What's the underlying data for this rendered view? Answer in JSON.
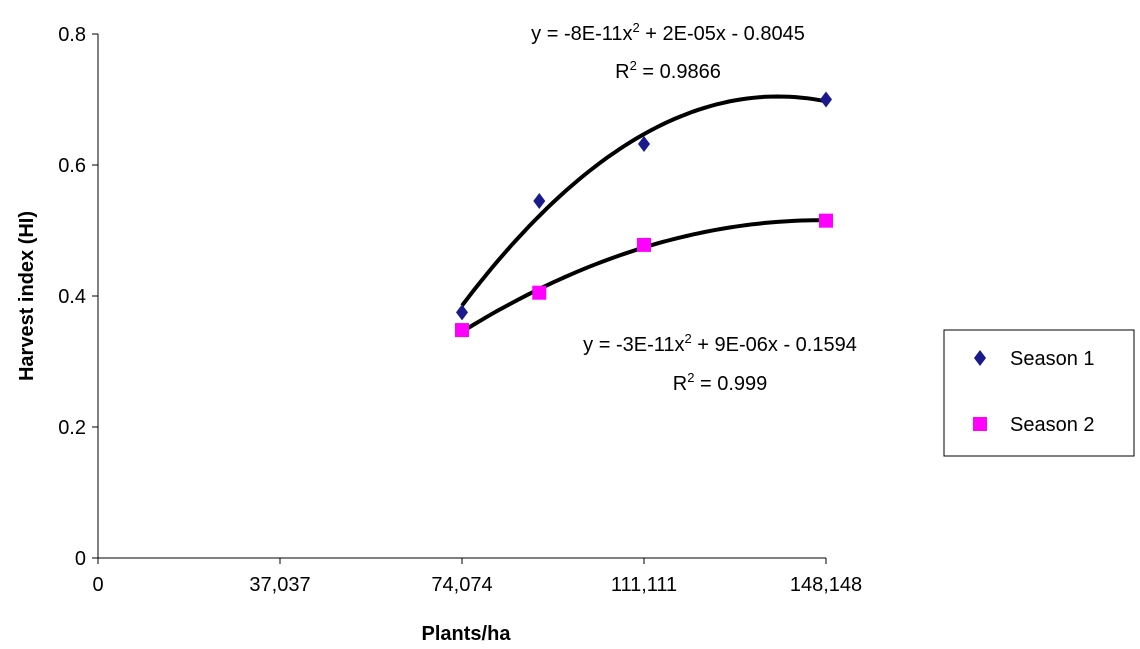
{
  "chart_data": {
    "type": "scatter",
    "xlabel": "Plants/ha",
    "ylabel": "Harvest index (HI)",
    "xlim": [
      0,
      148148
    ],
    "ylim": [
      0,
      0.8
    ],
    "x_ticks": [
      0,
      37037,
      74074,
      111111,
      148148
    ],
    "x_tick_labels": [
      "0",
      "37,037",
      "74,074",
      "111,111",
      "148,148"
    ],
    "y_ticks": [
      0,
      0.2,
      0.4,
      0.6,
      0.8
    ],
    "y_tick_labels": [
      "0",
      "0.2",
      "0.4",
      "0.6",
      "0.8"
    ],
    "grid": false,
    "legend_position": "right",
    "series": [
      {
        "name": "Season 1",
        "marker": "diamond",
        "color": "#1a1a8c",
        "x": [
          74074,
          89800,
          111111,
          148148
        ],
        "y": [
          0.375,
          0.545,
          0.632,
          0.7
        ],
        "trendline": "polynomial-2",
        "equation_line1": "y = -8E-11x",
        "equation_exp": "2",
        "equation_line1_rest": " + 2E-05x - 0.8045",
        "r2_label": "R",
        "r2_exp": "2",
        "r2_value": " = 0.9866"
      },
      {
        "name": "Season 2",
        "marker": "square",
        "color": "#ff00ff",
        "x": [
          74074,
          89800,
          111111,
          148148
        ],
        "y": [
          0.348,
          0.405,
          0.478,
          0.515
        ],
        "trendline": "polynomial-2",
        "equation_line1": "y = -3E-11x",
        "equation_exp": "2",
        "equation_line1_rest": " + 9E-06x - 0.1594",
        "r2_label": "R",
        "r2_exp": "2",
        "r2_value": " = 0.999"
      }
    ],
    "trendline_color": "#000000"
  }
}
